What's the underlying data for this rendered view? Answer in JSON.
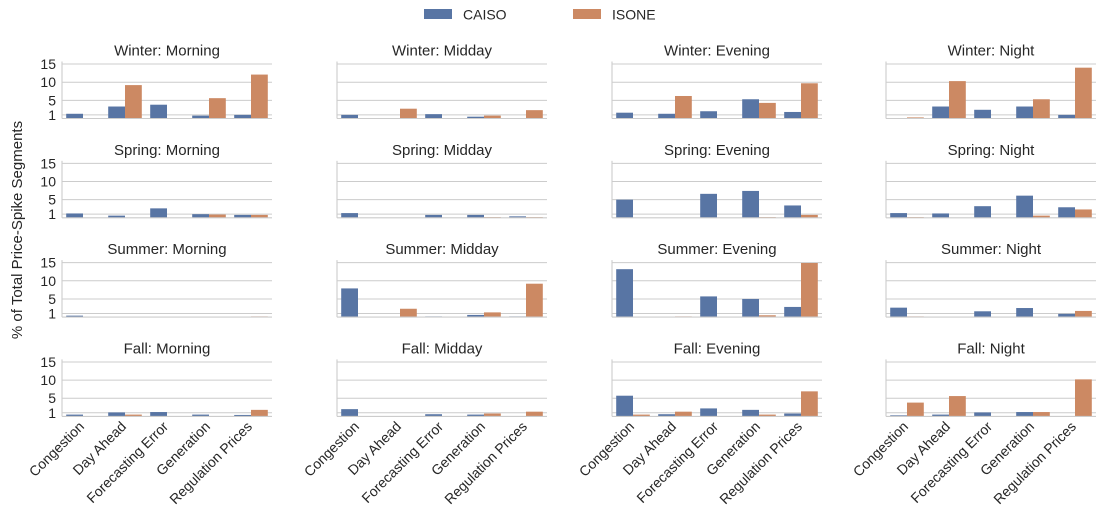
{
  "chart_data": {
    "type": "bar",
    "xlabel": "",
    "ylabel": "% of Total Price-Spike Segments",
    "categories": [
      "Congestion",
      "Day Ahead",
      "Forecasting Error",
      "Generation",
      "Regulation Prices"
    ],
    "yticks": [
      1,
      5,
      10,
      15
    ],
    "ylim": [
      0,
      15.7
    ],
    "grid": true,
    "legend_position": "top-center",
    "series": [
      {
        "name": "CAISO",
        "color": "#5875a4"
      },
      {
        "name": "ISONE",
        "color": "#cc8963"
      }
    ],
    "facets": [
      {
        "title": "Winter: Morning",
        "values": {
          "CAISO": [
            1.3,
            3.3,
            3.8,
            0.8,
            1.0
          ],
          "ISONE": [
            0,
            9.2,
            0,
            5.6,
            12.1
          ]
        }
      },
      {
        "title": "Winter: Midday",
        "values": {
          "CAISO": [
            1.0,
            0,
            1.2,
            0.5,
            0
          ],
          "ISONE": [
            0,
            2.7,
            0,
            0.8,
            2.3
          ]
        }
      },
      {
        "title": "Winter: Evening",
        "values": {
          "CAISO": [
            1.6,
            1.3,
            2.0,
            5.3,
            1.8
          ],
          "ISONE": [
            0,
            6.2,
            0,
            4.3,
            9.7
          ]
        }
      },
      {
        "title": "Winter: Night",
        "values": {
          "CAISO": [
            0,
            3.3,
            2.4,
            3.3,
            1.0
          ],
          "ISONE": [
            0.3,
            10.3,
            0,
            5.3,
            14.0
          ]
        }
      },
      {
        "title": "Spring: Morning",
        "values": {
          "CAISO": [
            1.2,
            0.6,
            2.6,
            1.0,
            0.8
          ],
          "ISONE": [
            0,
            0,
            0,
            0.9,
            0.8
          ]
        }
      },
      {
        "title": "Spring: Midday",
        "values": {
          "CAISO": [
            1.3,
            0,
            0.8,
            0.8,
            0.4
          ],
          "ISONE": [
            0,
            0,
            0,
            0.2,
            0.2
          ]
        }
      },
      {
        "title": "Spring: Evening",
        "values": {
          "CAISO": [
            5.0,
            0,
            6.6,
            7.4,
            3.4
          ],
          "ISONE": [
            0,
            0,
            0,
            0.2,
            0.8
          ]
        }
      },
      {
        "title": "Spring: Night",
        "values": {
          "CAISO": [
            1.3,
            1.2,
            3.2,
            6.1,
            2.9
          ],
          "ISONE": [
            0.2,
            0,
            0,
            0.6,
            2.3
          ]
        }
      },
      {
        "title": "Summer: Morning",
        "values": {
          "CAISO": [
            0.4,
            0,
            0,
            0,
            0
          ],
          "ISONE": [
            0,
            0,
            0,
            0,
            0.2
          ]
        }
      },
      {
        "title": "Summer: Midday",
        "values": {
          "CAISO": [
            7.9,
            0,
            0.2,
            0.6,
            0.2
          ],
          "ISONE": [
            0,
            2.3,
            0,
            1.3,
            9.2
          ]
        }
      },
      {
        "title": "Summer: Evening",
        "values": {
          "CAISO": [
            13.2,
            0,
            5.7,
            5.0,
            2.8
          ],
          "ISONE": [
            0,
            0.2,
            0,
            0.5,
            14.9
          ]
        }
      },
      {
        "title": "Summer: Night",
        "values": {
          "CAISO": [
            2.6,
            0,
            1.6,
            2.5,
            0.9
          ],
          "ISONE": [
            0.2,
            0,
            0,
            0,
            1.7
          ]
        }
      },
      {
        "title": "Fall: Morning",
        "values": {
          "CAISO": [
            0.5,
            1.1,
            1.2,
            0.5,
            0.4
          ],
          "ISONE": [
            0,
            0.5,
            0,
            0,
            1.8
          ]
        }
      },
      {
        "title": "Fall: Midday",
        "values": {
          "CAISO": [
            2.0,
            0,
            0.6,
            0.5,
            0
          ],
          "ISONE": [
            0,
            0,
            0,
            0.8,
            1.3
          ]
        }
      },
      {
        "title": "Fall: Evening",
        "values": {
          "CAISO": [
            5.7,
            0.6,
            2.2,
            1.8,
            0.8
          ],
          "ISONE": [
            0.5,
            1.3,
            0,
            0.5,
            6.9
          ]
        }
      },
      {
        "title": "Fall: Night",
        "values": {
          "CAISO": [
            0.3,
            0.5,
            1.1,
            1.2,
            0
          ],
          "ISONE": [
            3.8,
            5.6,
            0,
            1.2,
            10.2
          ]
        }
      }
    ]
  }
}
